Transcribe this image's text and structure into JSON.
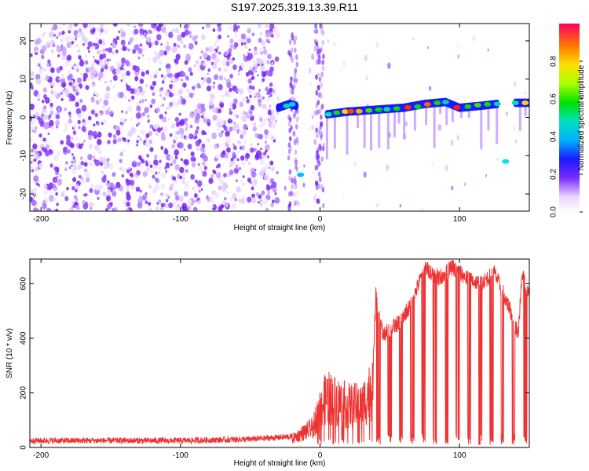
{
  "title": "S197.2025.319.13.39.R11",
  "chart_data": [
    {
      "type": "heatmap",
      "title": "S197.2025.319.13.39.R11",
      "xlabel": "Height of straight line (km)",
      "ylabel": "Frequency (Hz)",
      "xlim": [
        -208,
        150
      ],
      "ylim": [
        -24.5,
        24.5
      ],
      "xticks": [
        "-200",
        "-100",
        "0",
        "100"
      ],
      "yticks": [
        "-20",
        "-10",
        "0",
        "10",
        "20"
      ],
      "colorbar": {
        "label": "Normalized spectral amplitude",
        "range": [
          0,
          1
        ],
        "ticks": [
          "0.0",
          "0.2",
          "0.4",
          "0.6",
          "0.8"
        ]
      },
      "ridge": {
        "description_points_km_hz": [
          [
            -30,
            2.5
          ],
          [
            -22,
            3.5
          ],
          [
            -17,
            3
          ],
          [
            -15,
            -15
          ],
          [
            5,
            0.8
          ],
          [
            20,
            1.5
          ],
          [
            40,
            2
          ],
          [
            60,
            2.5
          ],
          [
            75,
            3.5
          ],
          [
            90,
            4
          ],
          [
            100,
            2.5
          ],
          [
            115,
            3
          ],
          [
            127,
            3.5
          ],
          [
            133,
            -11.5
          ],
          [
            140,
            3.8
          ],
          [
            150,
            3.8
          ]
        ]
      }
    },
    {
      "type": "line",
      "xlabel": "Height of straight line (km)",
      "ylabel": "SNR (10 * v/v)",
      "xlim": [
        -208,
        150
      ],
      "ylim": [
        0,
        690
      ],
      "xticks": [
        "-200",
        "-100",
        "0",
        "100"
      ],
      "yticks": [
        "0",
        "200",
        "400",
        "600"
      ],
      "series_color": "#ee3333",
      "envelope_km_snr": [
        [
          -208,
          25
        ],
        [
          -150,
          25
        ],
        [
          -100,
          25
        ],
        [
          -50,
          30
        ],
        [
          -20,
          40
        ],
        [
          -5,
          90
        ],
        [
          0,
          180
        ],
        [
          5,
          230
        ],
        [
          20,
          190
        ],
        [
          30,
          190
        ],
        [
          38,
          280
        ],
        [
          40,
          560
        ],
        [
          45,
          410
        ],
        [
          55,
          450
        ],
        [
          65,
          520
        ],
        [
          75,
          660
        ],
        [
          85,
          620
        ],
        [
          95,
          660
        ],
        [
          105,
          620
        ],
        [
          115,
          600
        ],
        [
          125,
          640
        ],
        [
          135,
          520
        ],
        [
          142,
          420
        ],
        [
          145,
          640
        ],
        [
          150,
          560
        ]
      ]
    }
  ]
}
